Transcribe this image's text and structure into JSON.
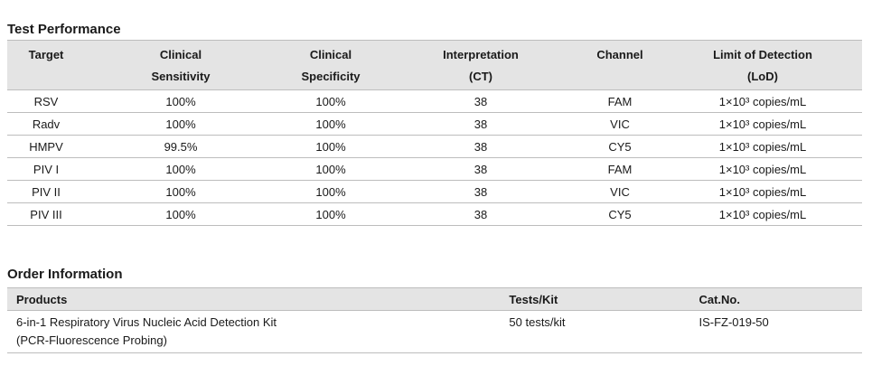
{
  "test_performance": {
    "title": "Test Performance",
    "headers": {
      "target": "Target",
      "sensitivity_1": "Clinical",
      "sensitivity_2": "Sensitivity",
      "specificity_1": "Clinical",
      "specificity_2": "Specificity",
      "interpretation_1": "Interpretation",
      "interpretation_2": "(CT)",
      "channel": "Channel",
      "lod_1": "Limit of Detection",
      "lod_2": "(LoD)"
    },
    "rows": [
      {
        "target": "RSV",
        "sensitivity": "100%",
        "specificity": "100%",
        "ct": "38",
        "channel": "FAM",
        "lod": "1×10³ copies/mL"
      },
      {
        "target": "Radv",
        "sensitivity": "100%",
        "specificity": "100%",
        "ct": "38",
        "channel": "VIC",
        "lod": "1×10³ copies/mL"
      },
      {
        "target": "HMPV",
        "sensitivity": "99.5%",
        "specificity": "100%",
        "ct": "38",
        "channel": "CY5",
        "lod": "1×10³ copies/mL"
      },
      {
        "target": "PIV I",
        "sensitivity": "100%",
        "specificity": "100%",
        "ct": "38",
        "channel": "FAM",
        "lod": "1×10³ copies/mL"
      },
      {
        "target": "PIV II",
        "sensitivity": "100%",
        "specificity": "100%",
        "ct": "38",
        "channel": "VIC",
        "lod": "1×10³ copies/mL"
      },
      {
        "target": "PIV III",
        "sensitivity": "100%",
        "specificity": "100%",
        "ct": "38",
        "channel": "CY5",
        "lod": "1×10³ copies/mL"
      }
    ]
  },
  "order_information": {
    "title": "Order Information",
    "headers": {
      "products": "Products",
      "tests": "Tests/Kit",
      "cat": "Cat.No."
    },
    "rows": [
      {
        "product_line1": "6-in-1 Respiratory Virus Nucleic Acid Detection Kit",
        "product_line2": "(PCR-Fluorescence Probing)",
        "tests": "50 tests/kit",
        "cat": "IS-FZ-019-50"
      }
    ]
  }
}
